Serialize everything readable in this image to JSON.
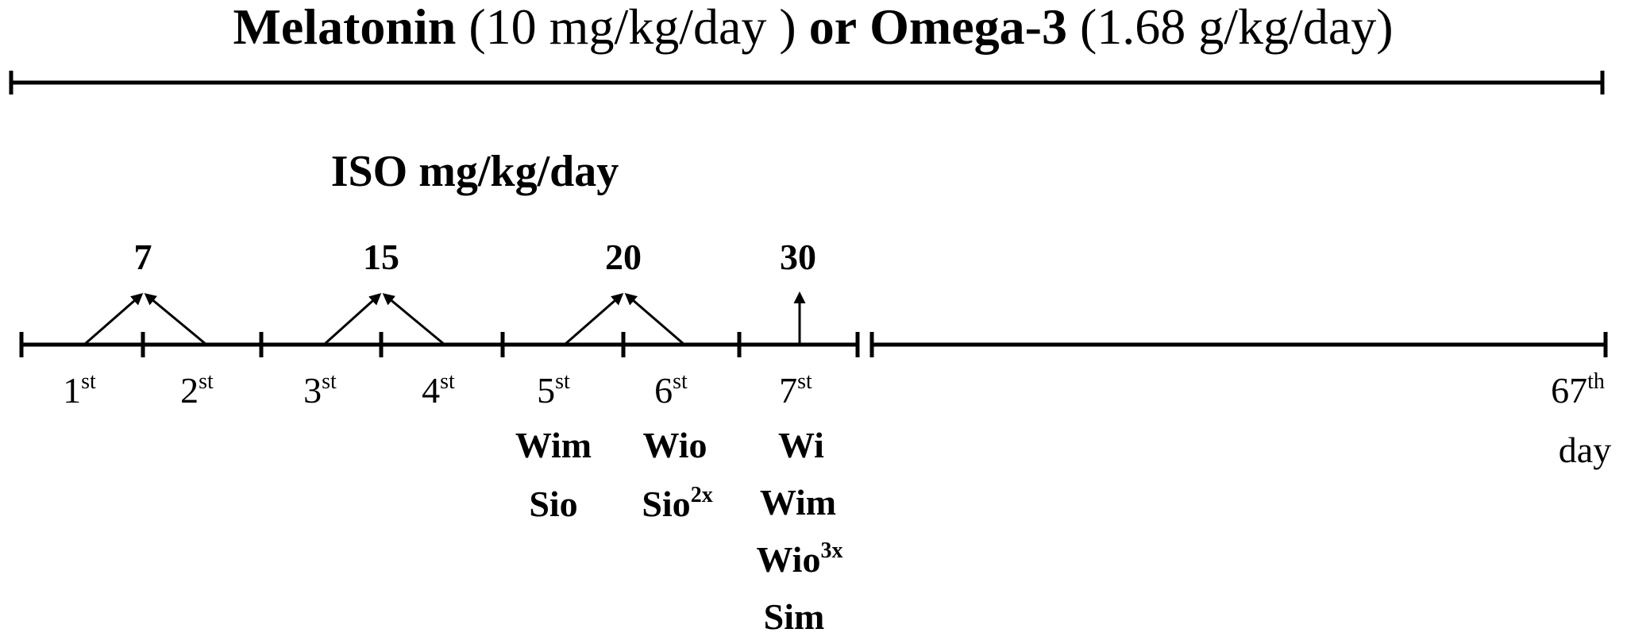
{
  "title": {
    "part1_bold": "Melatonin",
    "part1_dose": "(10 mg/kg/day )",
    "connector": "or",
    "part2_bold": "Omega-3",
    "part2_dose": "(1.68 g/kg/day)"
  },
  "iso_label": "ISO mg/kg/day",
  "doses": [
    "7",
    "15",
    "20",
    "30"
  ],
  "injections": [
    {
      "num": "1",
      "sup": "st"
    },
    {
      "num": "2",
      "sup": "st"
    },
    {
      "num": "3",
      "sup": "st"
    },
    {
      "num": "4",
      "sup": "st"
    },
    {
      "num": "5",
      "sup": "st"
    },
    {
      "num": "6",
      "sup": "st"
    },
    {
      "num": "7",
      "sup": "st"
    }
  ],
  "end_day": {
    "num": "67",
    "sup": "th",
    "word": "day"
  },
  "group_notes": {
    "after_5th": [
      {
        "t": "Wim",
        "s": ""
      },
      {
        "t": "Sio",
        "s": ""
      }
    ],
    "after_6th": [
      {
        "t": "Wio",
        "s": ""
      },
      {
        "t": "Sio",
        "s": "2x"
      }
    ],
    "after_7th": [
      {
        "t": "Wi",
        "s": ""
      },
      {
        "t": "Wim",
        "s": ""
      },
      {
        "t": "Wio",
        "s": "3x"
      },
      {
        "t": "Sim",
        "s": ""
      }
    ]
  }
}
